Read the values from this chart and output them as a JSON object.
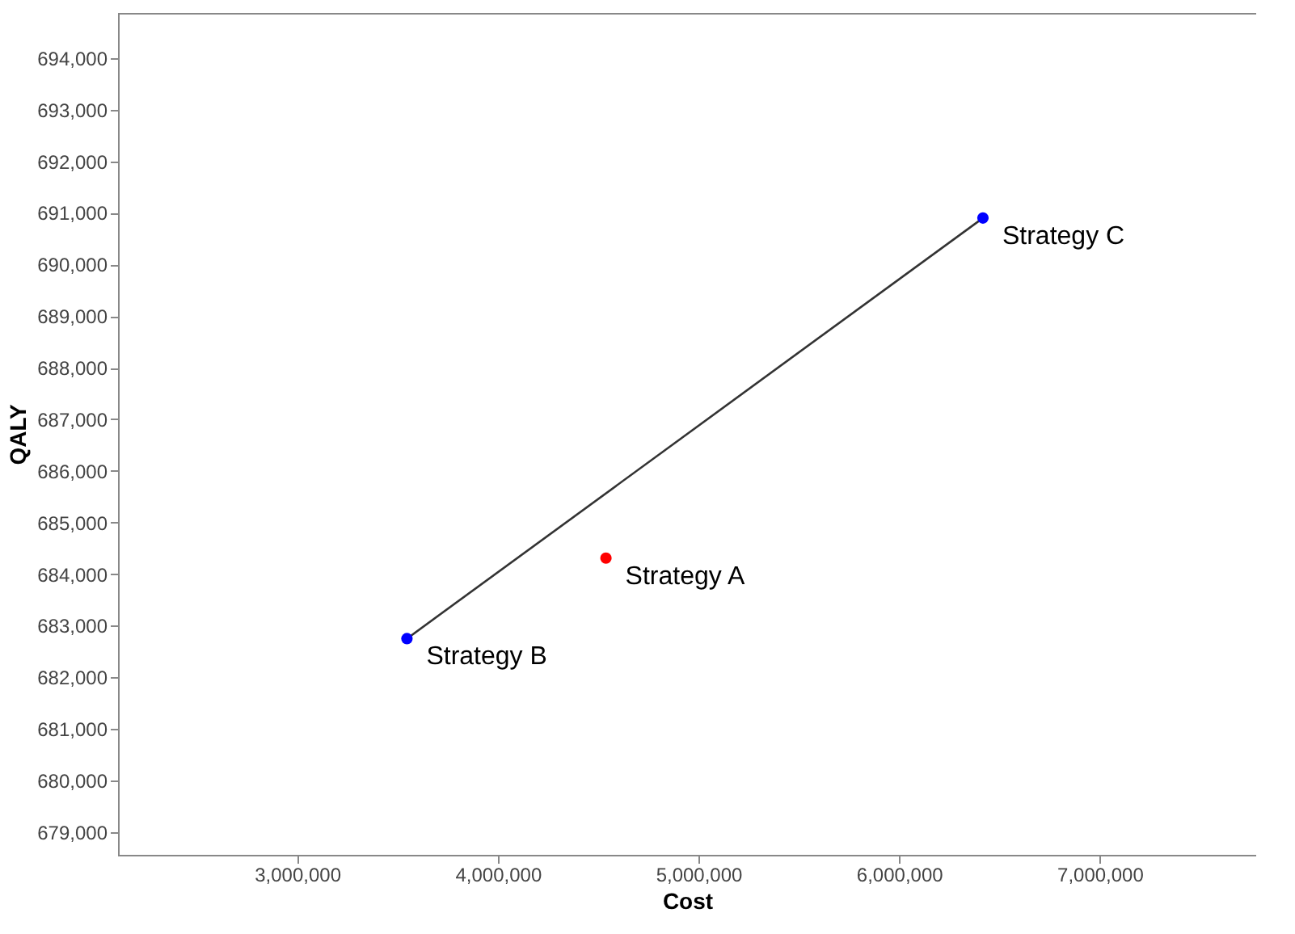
{
  "chart_data": {
    "type": "scatter",
    "xlabel": "Cost",
    "ylabel": "QALY",
    "xlim": [
      2107000,
      7780000
    ],
    "xticks": [
      {
        "value": 3000000,
        "label": "3,000,000"
      },
      {
        "value": 4000000,
        "label": "4,000,000"
      },
      {
        "value": 5000000,
        "label": "5,000,000"
      },
      {
        "value": 6000000,
        "label": "6,000,000"
      },
      {
        "value": 7000000,
        "label": "7,000,000"
      }
    ],
    "ylim": [
      678560,
      694875
    ],
    "yticks": [
      {
        "value": 679000,
        "label": "679,000"
      },
      {
        "value": 680000,
        "label": "680,000"
      },
      {
        "value": 681000,
        "label": "681,000"
      },
      {
        "value": 682000,
        "label": "682,000"
      },
      {
        "value": 683000,
        "label": "683,000"
      },
      {
        "value": 684000,
        "label": "684,000"
      },
      {
        "value": 685000,
        "label": "685,000"
      },
      {
        "value": 686000,
        "label": "686,000"
      },
      {
        "value": 687000,
        "label": "687,000"
      },
      {
        "value": 688000,
        "label": "688,000"
      },
      {
        "value": 689000,
        "label": "689,000"
      },
      {
        "value": 690000,
        "label": "690,000"
      },
      {
        "value": 691000,
        "label": "691,000"
      },
      {
        "value": 692000,
        "label": "692,000"
      },
      {
        "value": 693000,
        "label": "693,000"
      },
      {
        "value": 694000,
        "label": "694,000"
      }
    ],
    "marker": "circle",
    "series": [
      {
        "type": "line",
        "color": "#333333",
        "x": [
          3547000,
          6418000
        ],
        "values": [
          682750,
          690900
        ]
      },
      {
        "name": "Strategy A",
        "color": "#ff0000",
        "x": [
          4539000
        ],
        "values": [
          684310
        ]
      },
      {
        "name": "Strategy B",
        "color": "#0000ff",
        "x": [
          3547000
        ],
        "values": [
          682750
        ]
      },
      {
        "name": "Strategy C",
        "color": "#0000ff",
        "x": [
          6418000
        ],
        "values": [
          690900
        ]
      }
    ]
  }
}
